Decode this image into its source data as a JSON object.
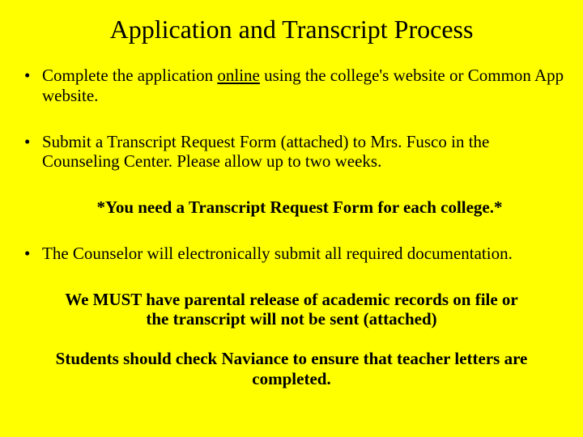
{
  "background_color": "#ffff00",
  "text_color": "#000000",
  "font_family": "Times New Roman",
  "title": "Application and Transcript Process",
  "bullets": {
    "item0_pre": "Complete the application ",
    "item0_underline": "online",
    "item0_post": " using the college's website or Common App website.",
    "item1": "Submit a Transcript Request Form (attached) to Mrs. Fusco in the Counseling Center. Please allow up to two weeks.",
    "item2": "The Counselor will electronically submit all required documentation."
  },
  "note1": "*You need a Transcript Request Form for each college.*",
  "note2": "We MUST have parental release of academic records on file or the transcript will not be sent (attached)",
  "note3": "Students should check Naviance to ensure that teacher letters are completed."
}
